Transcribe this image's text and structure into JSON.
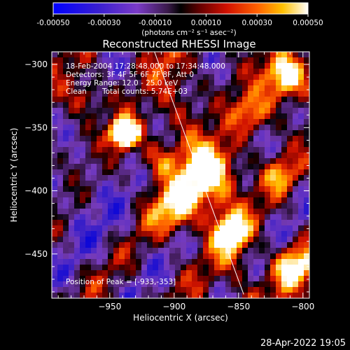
{
  "colorbar": {
    "ticks": [
      "-0.00050",
      "-0.00030",
      "-0.00010",
      "0.00010",
      "0.00030",
      "0.00050"
    ],
    "tick_values": [
      -0.0005,
      -0.0003,
      -0.0001,
      0.0001,
      0.0003,
      0.0005
    ],
    "range": [
      -0.0005,
      0.0005
    ],
    "units_label": "(photons cm⁻² s⁻¹ asec⁻²)"
  },
  "title": "Reconstructed RHESSI Image",
  "axes": {
    "xlabel": "Heliocentric X (arcsec)",
    "ylabel": "Heliocentric Y (arcsec)",
    "xlim": [
      -995,
      -795
    ],
    "ylim": [
      -485,
      -290
    ],
    "xticks": [
      -950,
      -900,
      -850,
      -800
    ],
    "xtick_labels": [
      "−950",
      "−900",
      "−850",
      "−800"
    ],
    "yticks": [
      -300,
      -350,
      -400,
      -450
    ],
    "ytick_labels": [
      "−300",
      "−350",
      "−400",
      "−450"
    ]
  },
  "info": {
    "time": "18-Feb-2004 17:28:48.000 to 17:34:48.000",
    "detectors": "Detectors: 3F 4F 5F 6F 7F 8F, Att 0",
    "energy": "Energy Range: 12.0 - 25.0 keV",
    "method": "Clean",
    "counts": "Total counts: 5.74E+03",
    "peak": "Position of Peak = [-933,-353]"
  },
  "limb": {
    "x1": -916,
    "y1": -288,
    "x2": -846,
    "y2": -482
  },
  "footer": {
    "timestamp": "28-Apr-2022 19:05"
  }
}
